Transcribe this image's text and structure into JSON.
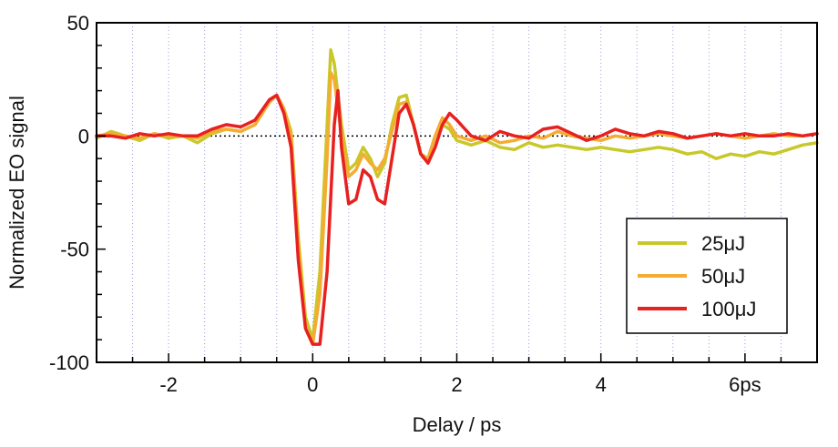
{
  "chart_data": {
    "type": "line",
    "title": "",
    "xlabel": "Delay / ps",
    "ylabel": "Normalized EO signal",
    "xlim": [
      -3,
      7
    ],
    "ylim": [
      -100,
      50
    ],
    "x_ticks": [
      {
        "value": -2,
        "label": "-2"
      },
      {
        "value": 0,
        "label": "0"
      },
      {
        "value": 2,
        "label": "2"
      },
      {
        "value": 4,
        "label": "4"
      },
      {
        "value": 6,
        "label": "6ps"
      }
    ],
    "y_ticks": [
      {
        "value": -100,
        "label": "-100"
      },
      {
        "value": -50,
        "label": "-50"
      },
      {
        "value": 0,
        "label": "0"
      },
      {
        "value": 50,
        "label": "50"
      }
    ],
    "grid": "vertical-dotted",
    "zero_line": true,
    "legend_position": "bottom-right",
    "series": [
      {
        "name": "25μJ",
        "color": "#c8c82a",
        "x": [
          -3.0,
          -2.8,
          -2.6,
          -2.4,
          -2.2,
          -2.0,
          -1.8,
          -1.6,
          -1.4,
          -1.2,
          -1.0,
          -0.8,
          -0.6,
          -0.5,
          -0.4,
          -0.3,
          -0.2,
          -0.1,
          0.0,
          0.1,
          0.2,
          0.25,
          0.3,
          0.4,
          0.5,
          0.6,
          0.7,
          0.8,
          0.9,
          1.0,
          1.1,
          1.2,
          1.3,
          1.4,
          1.5,
          1.6,
          1.7,
          1.8,
          1.9,
          2.0,
          2.2,
          2.4,
          2.6,
          2.8,
          3.0,
          3.2,
          3.4,
          3.6,
          3.8,
          4.0,
          4.2,
          4.4,
          4.6,
          4.8,
          5.0,
          5.2,
          5.4,
          5.6,
          5.8,
          6.0,
          6.2,
          6.4,
          6.6,
          6.8,
          7.0
        ],
        "y": [
          -1,
          2,
          0,
          -2,
          1,
          -1,
          0,
          -3,
          1,
          3,
          2,
          5,
          15,
          18,
          12,
          2,
          -45,
          -80,
          -90,
          -60,
          5,
          38,
          32,
          5,
          -15,
          -12,
          -5,
          -10,
          -18,
          -12,
          5,
          17,
          18,
          5,
          -8,
          -10,
          0,
          5,
          3,
          -2,
          -4,
          -2,
          -5,
          -6,
          -3,
          -5,
          -4,
          -5,
          -6,
          -5,
          -6,
          -7,
          -6,
          -5,
          -6,
          -8,
          -7,
          -10,
          -8,
          -9,
          -7,
          -8,
          -6,
          -4,
          -3
        ]
      },
      {
        "name": "50μJ",
        "color": "#f4ac32",
        "x": [
          -3.0,
          -2.8,
          -2.6,
          -2.4,
          -2.2,
          -2.0,
          -1.8,
          -1.6,
          -1.4,
          -1.2,
          -1.0,
          -0.8,
          -0.6,
          -0.5,
          -0.4,
          -0.3,
          -0.2,
          -0.1,
          0.0,
          0.1,
          0.2,
          0.25,
          0.3,
          0.4,
          0.5,
          0.6,
          0.7,
          0.8,
          0.9,
          1.0,
          1.1,
          1.2,
          1.3,
          1.4,
          1.5,
          1.6,
          1.7,
          1.8,
          1.9,
          2.0,
          2.2,
          2.4,
          2.6,
          2.8,
          3.0,
          3.2,
          3.4,
          3.6,
          3.8,
          4.0,
          4.2,
          4.4,
          4.6,
          4.8,
          5.0,
          5.2,
          5.4,
          5.6,
          5.8,
          6.0,
          6.2,
          6.4,
          6.6,
          6.8,
          7.0
        ],
        "y": [
          0,
          1,
          0,
          -1,
          1,
          0,
          0,
          -1,
          2,
          3,
          2,
          5,
          15,
          18,
          12,
          0,
          -50,
          -85,
          -92,
          -70,
          -10,
          28,
          25,
          0,
          -18,
          -15,
          -8,
          -12,
          -15,
          -10,
          2,
          14,
          15,
          5,
          -8,
          -10,
          0,
          8,
          5,
          0,
          -2,
          0,
          -3,
          -2,
          0,
          -1,
          2,
          0,
          -1,
          -2,
          0,
          -1,
          0,
          1,
          0,
          -1,
          0,
          1,
          0,
          -1,
          0,
          1,
          0,
          0,
          1
        ]
      },
      {
        "name": "100μJ",
        "color": "#e82020",
        "x": [
          -3.0,
          -2.8,
          -2.6,
          -2.4,
          -2.2,
          -2.0,
          -1.8,
          -1.6,
          -1.4,
          -1.2,
          -1.0,
          -0.8,
          -0.6,
          -0.5,
          -0.4,
          -0.3,
          -0.2,
          -0.1,
          0.0,
          0.1,
          0.2,
          0.3,
          0.35,
          0.4,
          0.5,
          0.6,
          0.7,
          0.8,
          0.9,
          1.0,
          1.1,
          1.2,
          1.3,
          1.4,
          1.5,
          1.6,
          1.7,
          1.8,
          1.9,
          2.0,
          2.2,
          2.4,
          2.6,
          2.8,
          3.0,
          3.2,
          3.4,
          3.6,
          3.8,
          4.0,
          4.2,
          4.4,
          4.6,
          4.8,
          5.0,
          5.2,
          5.4,
          5.6,
          5.8,
          6.0,
          6.2,
          6.4,
          6.6,
          6.8,
          7.0
        ],
        "y": [
          0,
          0,
          -1,
          1,
          0,
          1,
          0,
          0,
          3,
          5,
          4,
          7,
          16,
          18,
          10,
          -5,
          -55,
          -85,
          -92,
          -92,
          -60,
          5,
          20,
          -5,
          -30,
          -28,
          -15,
          -18,
          -28,
          -30,
          -10,
          10,
          14,
          5,
          -8,
          -12,
          -5,
          5,
          10,
          7,
          0,
          -2,
          2,
          0,
          -1,
          3,
          4,
          1,
          -2,
          0,
          3,
          1,
          0,
          2,
          1,
          -1,
          0,
          1,
          0,
          1,
          0,
          0,
          1,
          0,
          1
        ]
      }
    ]
  }
}
